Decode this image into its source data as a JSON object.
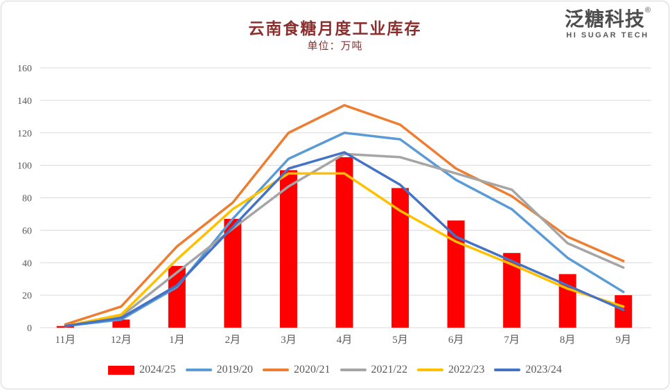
{
  "page": {
    "title": "云南食糖月度工业库存",
    "subtitle": "单位：万吨",
    "logo": {
      "cn": "泛糖科技",
      "reg": "®",
      "en": "HI SUGAR TECH"
    }
  },
  "colors": {
    "title_text": "#8b2e2e",
    "axis_text": "#595959",
    "gridline": "#d9d9d9",
    "bar_red": "#ff0000",
    "line_blue": "#5b9bd5",
    "line_orange": "#ed7d31",
    "line_gray": "#a5a5a5",
    "line_yellow": "#ffc000",
    "line_darkblue": "#4472c4"
  },
  "chart_data": {
    "type": "bar",
    "subtype": "bar-line-combo",
    "title": "云南食糖月度工业库存",
    "subtitle_unit": "单位：万吨",
    "categories": [
      "11月",
      "12月",
      "1月",
      "2月",
      "3月",
      "4月",
      "5月",
      "6月",
      "7月",
      "8月",
      "9月"
    ],
    "ylim": [
      0,
      160
    ],
    "ytick_step": 20,
    "grid": true,
    "legend_position": "bottom",
    "series": [
      {
        "name": "2024/25",
        "type": "bar",
        "color": "#ff0000",
        "values": [
          1,
          5,
          38,
          67,
          97,
          105,
          86,
          66,
          46,
          33,
          20
        ]
      },
      {
        "name": "2019/20",
        "type": "line",
        "color": "#5b9bd5",
        "values": [
          1,
          5,
          25,
          67,
          104,
          120,
          116,
          91,
          73,
          43,
          22
        ]
      },
      {
        "name": "2020/21",
        "type": "line",
        "color": "#ed7d31",
        "values": [
          2,
          13,
          50,
          77,
          120,
          137,
          125,
          98,
          81,
          56,
          41
        ]
      },
      {
        "name": "2021/22",
        "type": "line",
        "color": "#a5a5a5",
        "values": [
          1,
          7,
          34,
          61,
          87,
          107,
          105,
          95,
          85,
          52,
          37
        ]
      },
      {
        "name": "2022/23",
        "type": "line",
        "color": "#ffc000",
        "values": [
          1,
          8,
          42,
          73,
          95,
          95,
          72,
          53,
          39,
          24,
          13
        ]
      },
      {
        "name": "2023/24",
        "type": "line",
        "color": "#4472c4",
        "values": [
          1,
          6,
          26,
          62,
          98,
          108,
          88,
          56,
          41,
          26,
          11
        ]
      }
    ]
  }
}
